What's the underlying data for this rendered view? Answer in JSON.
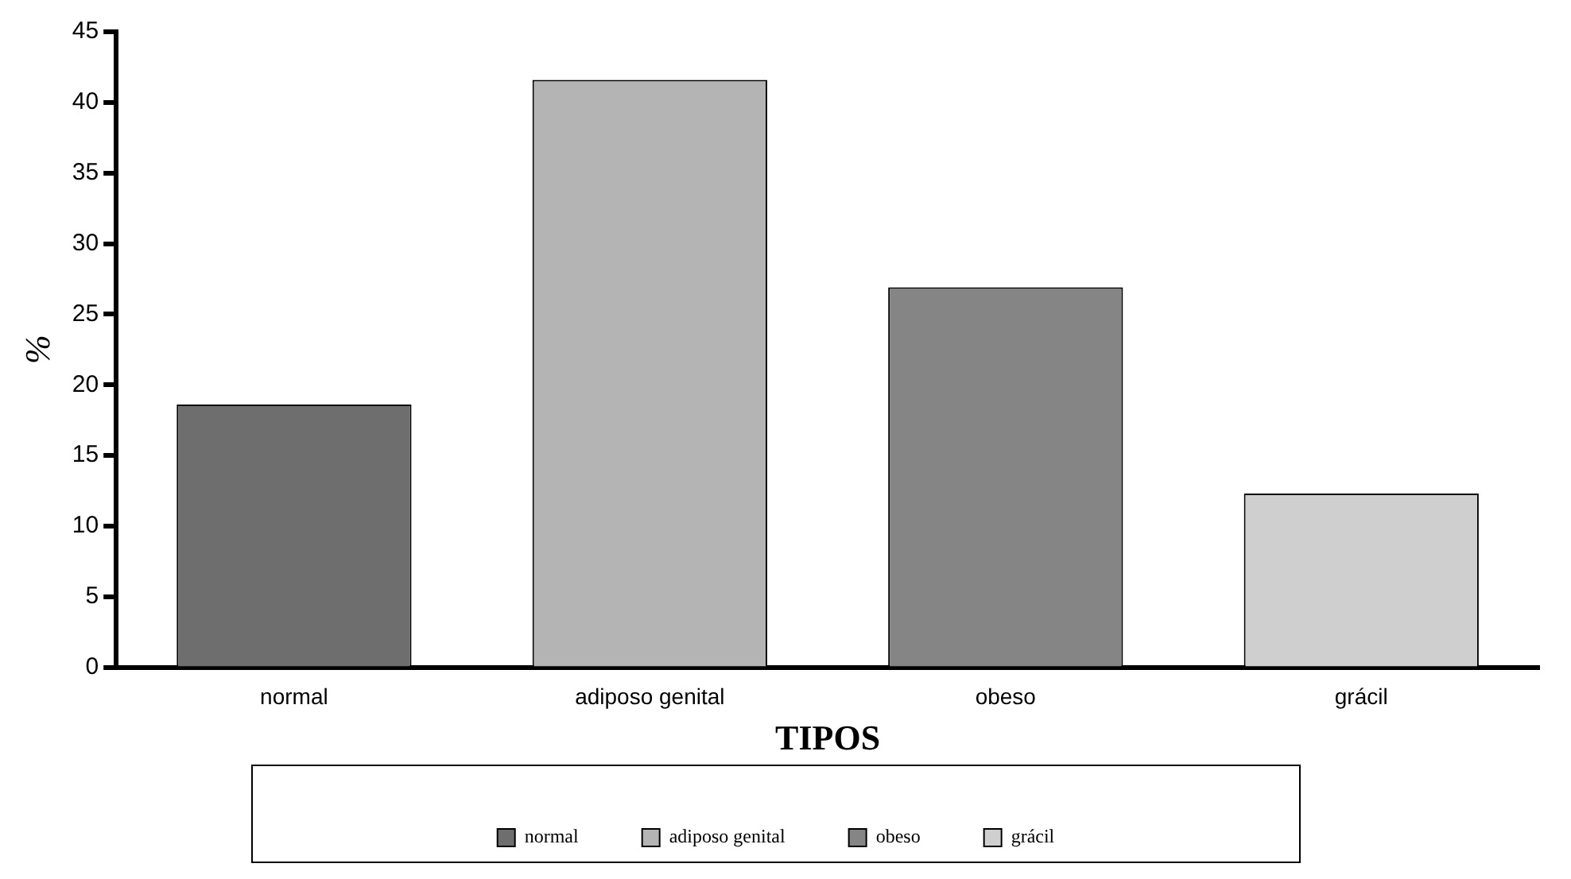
{
  "chart_data": {
    "type": "bar",
    "xlabel": "TIPOS",
    "ylabel": "%",
    "categories": [
      "normal",
      "adiposo genital",
      "obeso",
      "grácil"
    ],
    "series": [
      {
        "name": "normal",
        "color": "#6e6e6e",
        "values": [
          18.6,
          null,
          null,
          null
        ]
      },
      {
        "name": "adiposo genital",
        "color": "#b4b4b4",
        "values": [
          null,
          41.6,
          null,
          null
        ]
      },
      {
        "name": "obeso",
        "color": "#858585",
        "values": [
          null,
          null,
          26.9,
          null
        ]
      },
      {
        "name": "grácil",
        "color": "#cfcfcf",
        "values": [
          null,
          null,
          null,
          12.3
        ]
      }
    ],
    "ylim": [
      0,
      45
    ],
    "yticks": [
      0,
      5,
      10,
      15,
      20,
      25,
      30,
      35,
      40,
      45
    ],
    "grid": false,
    "legend": "bottom"
  }
}
